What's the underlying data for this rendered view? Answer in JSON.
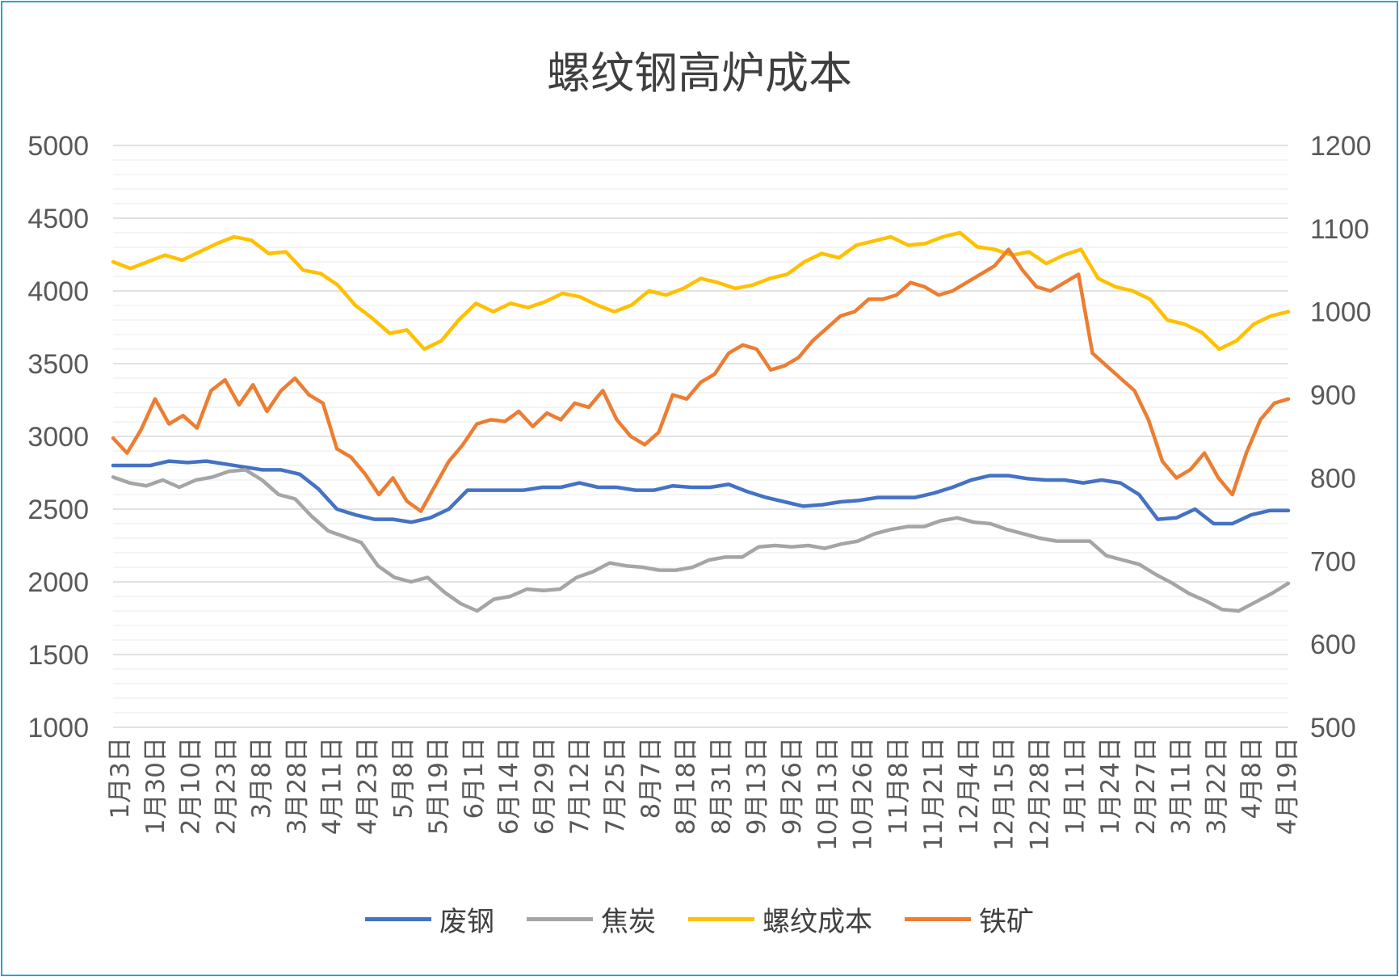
{
  "chart_data": {
    "type": "line",
    "title": "螺纹钢高炉成本",
    "y_left": {
      "lim": [
        1000,
        5000
      ],
      "ticks": [
        1000,
        1500,
        2000,
        2500,
        3000,
        3500,
        4000,
        4500,
        5000
      ]
    },
    "y_right": {
      "lim": [
        500,
        1200
      ],
      "ticks": [
        500,
        600,
        700,
        800,
        900,
        1000,
        1100,
        1200
      ]
    },
    "x_tick_labels": [
      "1月3日",
      "1月30日",
      "2月10日",
      "2月23日",
      "3月8日",
      "3月28日",
      "4月11日",
      "4月23日",
      "5月8日",
      "5月19日",
      "6月1日",
      "6月14日",
      "6月29日",
      "7月12日",
      "7月25日",
      "8月7日",
      "8月18日",
      "8月31日",
      "9月13日",
      "9月26日",
      "10月13日",
      "10月26日",
      "11月8日",
      "11月21日",
      "12月4日",
      "12月15日",
      "12月28日",
      "1月11日",
      "1月24日",
      "2月27日",
      "3月11日",
      "3月22日",
      "4月8日",
      "4月19日"
    ],
    "grid": true,
    "legend_position": "bottom",
    "series": [
      {
        "name": "废钢",
        "axis": "left",
        "color": "#4472c4",
        "values": [
          2800,
          2800,
          2800,
          2830,
          2820,
          2830,
          2810,
          2790,
          2770,
          2770,
          2740,
          2640,
          2500,
          2460,
          2430,
          2430,
          2410,
          2440,
          2500,
          2630,
          2630,
          2630,
          2630,
          2650,
          2650,
          2680,
          2650,
          2650,
          2630,
          2630,
          2660,
          2650,
          2650,
          2670,
          2620,
          2580,
          2550,
          2520,
          2530,
          2550,
          2560,
          2580,
          2580,
          2580,
          2610,
          2650,
          2700,
          2730,
          2730,
          2710,
          2700,
          2700,
          2680,
          2700,
          2680,
          2600,
          2430,
          2440,
          2500,
          2400,
          2400,
          2460,
          2490,
          2490
        ]
      },
      {
        "name": "焦炭",
        "axis": "left",
        "color": "#a5a5a5",
        "values": [
          2720,
          2680,
          2660,
          2700,
          2650,
          2700,
          2720,
          2760,
          2770,
          2700,
          2600,
          2570,
          2450,
          2350,
          2310,
          2270,
          2110,
          2030,
          2000,
          2030,
          1930,
          1850,
          1800,
          1880,
          1900,
          1950,
          1940,
          1950,
          2030,
          2070,
          2130,
          2110,
          2100,
          2080,
          2080,
          2100,
          2150,
          2170,
          2170,
          2240,
          2250,
          2240,
          2250,
          2230,
          2260,
          2280,
          2330,
          2360,
          2380,
          2380,
          2420,
          2440,
          2410,
          2400,
          2360,
          2330,
          2300,
          2280,
          2280,
          2280,
          2180,
          2150,
          2120,
          2050,
          1990,
          1920,
          1870,
          1810,
          1800,
          1860,
          1920,
          1990
        ]
      },
      {
        "name": "螺纹成本",
        "axis": "right",
        "color": "#ffc000",
        "values": [
          1060,
          1052,
          1060,
          1068,
          1062,
          1072,
          1082,
          1090,
          1086,
          1070,
          1072,
          1050,
          1046,
          1032,
          1008,
          992,
          974,
          978,
          955,
          965,
          990,
          1010,
          1000,
          1010,
          1005,
          1012,
          1022,
          1018,
          1008,
          1000,
          1008,
          1025,
          1020,
          1028,
          1040,
          1035,
          1028,
          1032,
          1040,
          1045,
          1060,
          1070,
          1065,
          1080,
          1085,
          1090,
          1080,
          1082,
          1090,
          1095,
          1078,
          1075,
          1068,
          1072,
          1058,
          1068,
          1075,
          1040,
          1030,
          1025,
          1015,
          990,
          985,
          975,
          955,
          965,
          985,
          995,
          1000
        ]
      },
      {
        "name": "铁矿",
        "axis": "right",
        "color": "#ed7d31",
        "values": [
          848,
          830,
          858,
          895,
          865,
          875,
          860,
          905,
          918,
          888,
          912,
          880,
          905,
          920,
          900,
          890,
          835,
          825,
          805,
          780,
          800,
          772,
          760,
          790,
          820,
          840,
          865,
          870,
          868,
          880,
          862,
          878,
          870,
          890,
          885,
          905,
          870,
          850,
          840,
          855,
          900,
          895,
          915,
          925,
          950,
          960,
          955,
          930,
          935,
          945,
          965,
          980,
          995,
          1000,
          1015,
          1015,
          1020,
          1035,
          1030,
          1020,
          1025,
          1035,
          1045,
          1055,
          1075,
          1050,
          1030,
          1025,
          1035,
          1045,
          950,
          935,
          920,
          905,
          870,
          820,
          800,
          810,
          830,
          800,
          780,
          830,
          870,
          890,
          895
        ]
      }
    ]
  }
}
